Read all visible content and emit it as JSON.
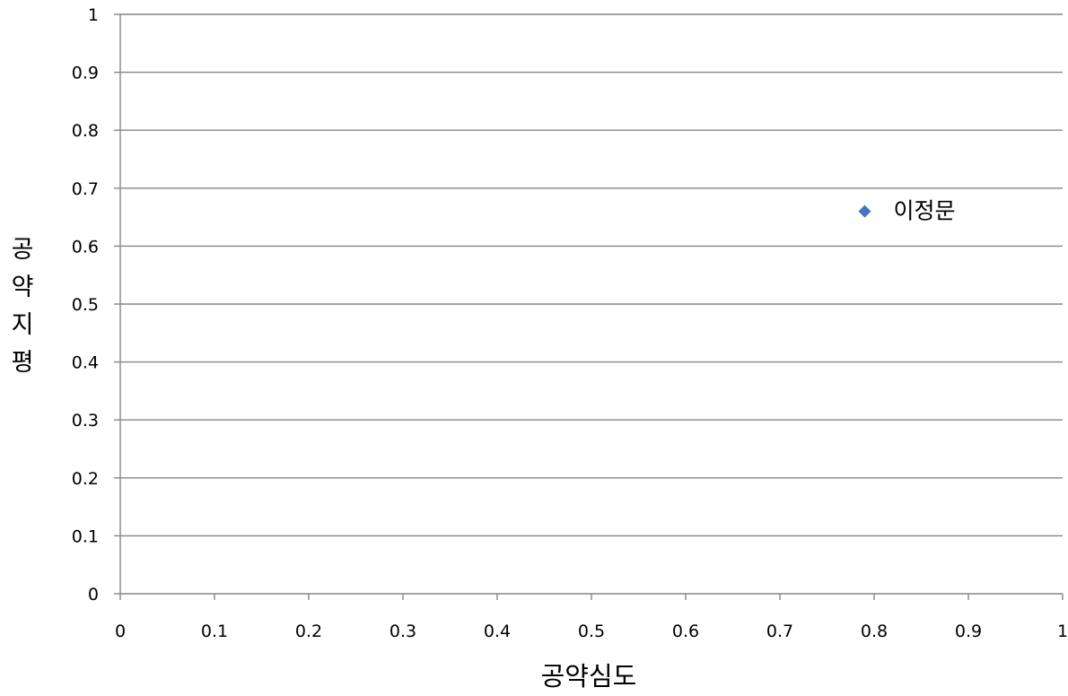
{
  "chart_data": {
    "type": "scatter",
    "title": "",
    "xlabel": "공약심도",
    "ylabel": "공약지평",
    "xlim": [
      0,
      1
    ],
    "ylim": [
      0,
      1
    ],
    "xticks": [
      "0",
      "0.1",
      "0.2",
      "0.3",
      "0.4",
      "0.5",
      "0.6",
      "0.7",
      "0.8",
      "0.9",
      "1"
    ],
    "yticks": [
      "0",
      "0.1",
      "0.2",
      "0.3",
      "0.4",
      "0.5",
      "0.6",
      "0.7",
      "0.8",
      "0.9",
      "1"
    ],
    "grid": "horizontal",
    "legend": "none",
    "marker": "diamond",
    "marker_color": "#4472C4",
    "gridline_color": "#868686",
    "axis_color": "#868686",
    "points": [
      {
        "x": 0.79,
        "y": 0.66,
        "label": "이정문"
      }
    ]
  }
}
